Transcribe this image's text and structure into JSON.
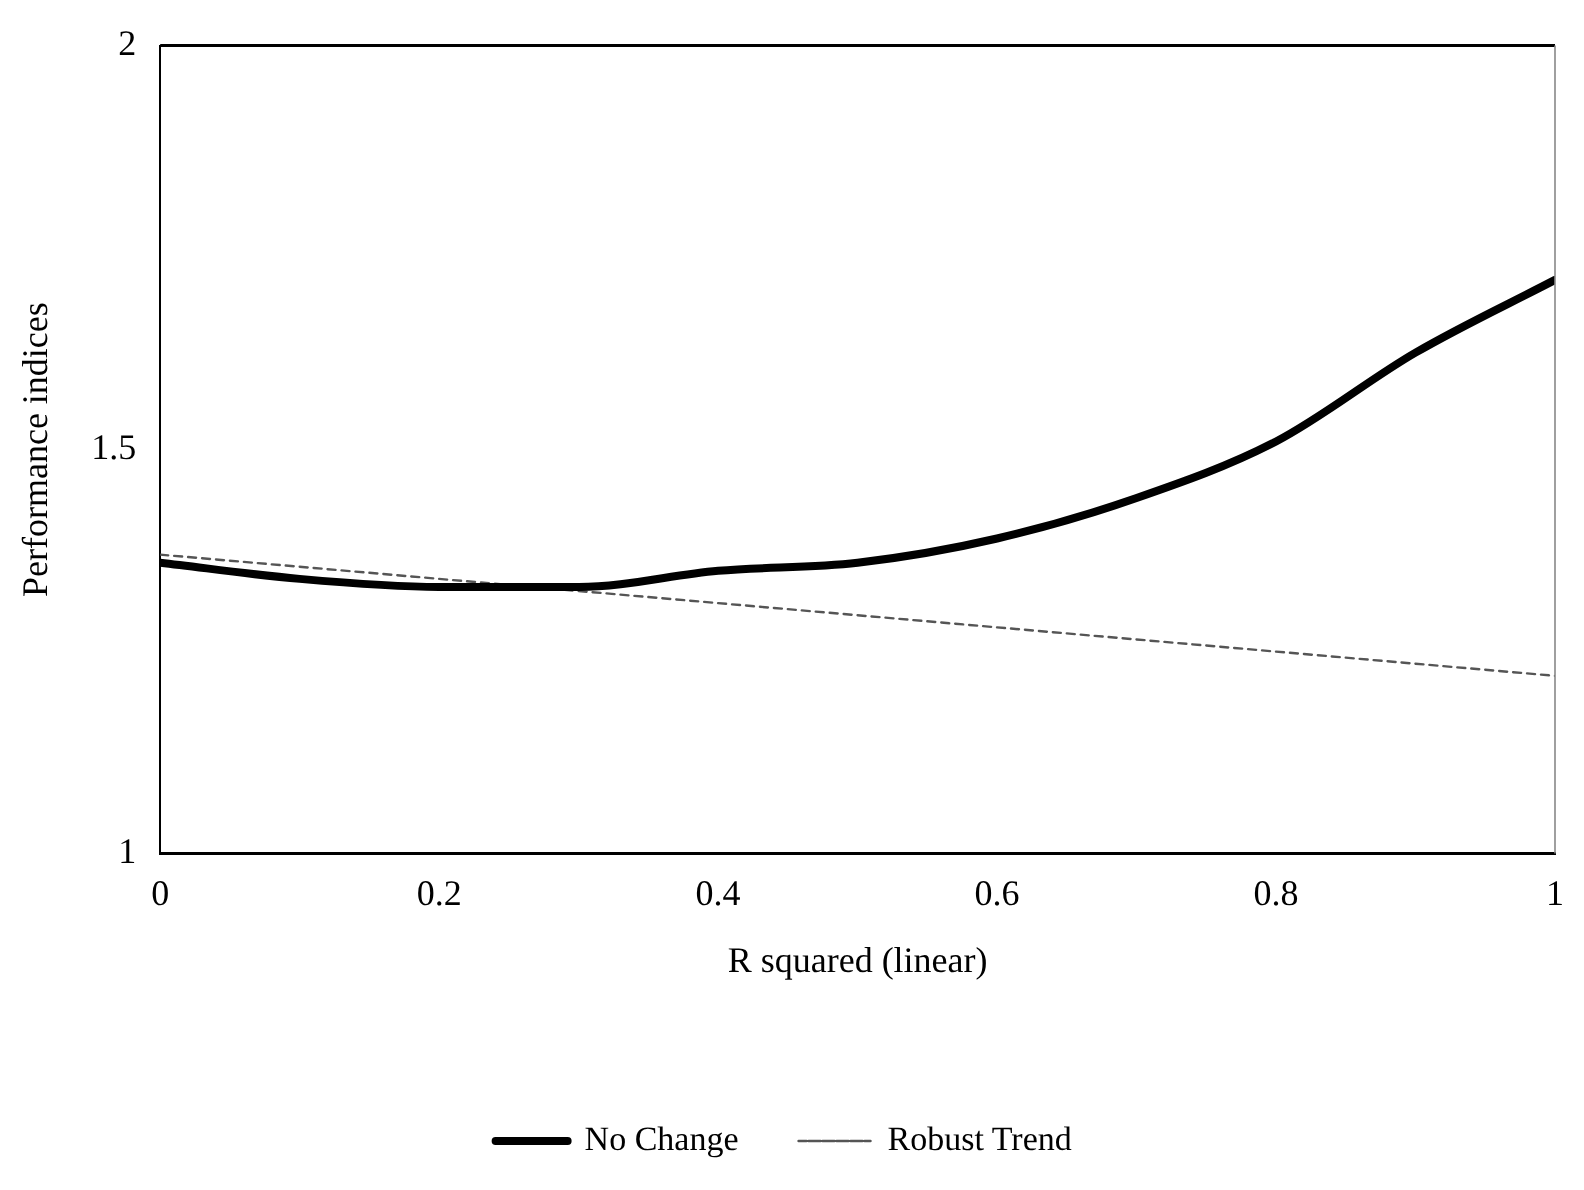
{
  "chart_data": {
    "type": "line",
    "xlabel": "R squared (linear)",
    "ylabel": "Performance indices",
    "xlim": [
      0,
      1
    ],
    "xticks": [
      0,
      0.2,
      0.4,
      0.6,
      0.8,
      1
    ],
    "ylim": [
      1,
      2
    ],
    "yticks": [
      1,
      1.5,
      2
    ],
    "grid": false,
    "legend": "bottom",
    "marker": "none",
    "series": [
      {
        "name": "No Change",
        "color": "#000000",
        "line_style": "solid",
        "x": [
          0,
          0.1,
          0.2,
          0.3,
          0.4,
          0.5,
          0.6,
          0.7,
          0.8,
          0.9,
          1
        ],
        "values": [
          1.36,
          1.34,
          1.33,
          1.33,
          1.35,
          1.36,
          1.39,
          1.44,
          1.51,
          1.62,
          1.71
        ]
      },
      {
        "name": "Robust Trend",
        "color": "#555555",
        "line_style": "dashed",
        "x": [
          0,
          1
        ],
        "values": [
          1.37,
          1.22
        ]
      }
    ]
  }
}
